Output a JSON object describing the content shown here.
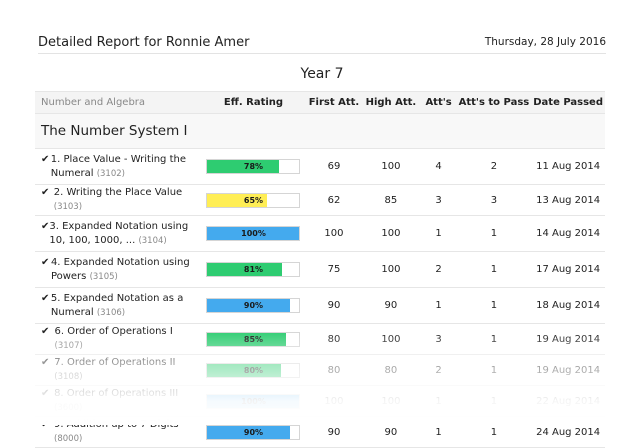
{
  "header": {
    "title": "Detailed Report for Ronnie Amer",
    "date": "Thursday, 28 July 2016"
  },
  "year_title": "Year 7",
  "table": {
    "columns": [
      "Number and Algebra",
      "Eff. Rating",
      "First Att.",
      "High Att.",
      "Att's",
      "Att's to Pass",
      "Date Passed"
    ],
    "section": "The Number System I",
    "rows": [
      {
        "check": "✔",
        "name": "1. Place Value - Writing the Numeral",
        "code": "(3102)",
        "rating": "78%",
        "rating_value": 78,
        "color": "#2ecc71",
        "first": "69",
        "high": "100",
        "atts": "4",
        "to_pass": "2",
        "date": "11 Aug 2014"
      },
      {
        "check": "✔",
        "name": "2. Writing the Place Value",
        "code": "(3103)",
        "rating": "65%",
        "rating_value": 65,
        "color": "#ffee55",
        "first": "62",
        "high": "85",
        "atts": "3",
        "to_pass": "3",
        "date": "13 Aug 2014"
      },
      {
        "check": "✔",
        "name": "3. Expanded Notation using 10, 100, 1000, ...",
        "code": "(3104)",
        "rating": "100%",
        "rating_value": 100,
        "color": "#44aaee",
        "first": "100",
        "high": "100",
        "atts": "1",
        "to_pass": "1",
        "date": "14 Aug 2014"
      },
      {
        "check": "✔",
        "name": "4. Expanded Notation using Powers",
        "code": "(3105)",
        "rating": "81%",
        "rating_value": 81,
        "color": "#2ecc71",
        "first": "75",
        "high": "100",
        "atts": "2",
        "to_pass": "1",
        "date": "17 Aug 2014"
      },
      {
        "check": "✔",
        "name": "5. Expanded Notation as a Numeral",
        "code": "(3106)",
        "rating": "90%",
        "rating_value": 90,
        "color": "#44aaee",
        "first": "90",
        "high": "90",
        "atts": "1",
        "to_pass": "1",
        "date": "18 Aug 2014"
      },
      {
        "check": "✔",
        "name": "6. Order of Operations I",
        "code": "(3107)",
        "rating": "85%",
        "rating_value": 85,
        "color": "#2ecc71",
        "first": "80",
        "high": "100",
        "atts": "3",
        "to_pass": "1",
        "date": "19 Aug 2014"
      },
      {
        "check": "✔",
        "name": "7. Order of Operations II",
        "code": "(3108)",
        "rating": "80%",
        "rating_value": 80,
        "color": "#2ecc71",
        "first": "80",
        "high": "80",
        "atts": "2",
        "to_pass": "1",
        "date": "19 Aug 2014"
      },
      {
        "check": "✔",
        "name": "8. Order of Operations III",
        "code": "(3600)",
        "rating": "100%",
        "rating_value": 100,
        "color": "#44aaee",
        "first": "100",
        "high": "100",
        "atts": "1",
        "to_pass": "1",
        "date": "22 Aug 2014"
      },
      {
        "check": "✔",
        "name": "9. Addition up to 7 Digits",
        "code": "(8000)",
        "rating": "90%",
        "rating_value": 90,
        "color": "#44aaee",
        "first": "90",
        "high": "90",
        "atts": "1",
        "to_pass": "1",
        "date": "24 Aug 2014"
      }
    ]
  }
}
